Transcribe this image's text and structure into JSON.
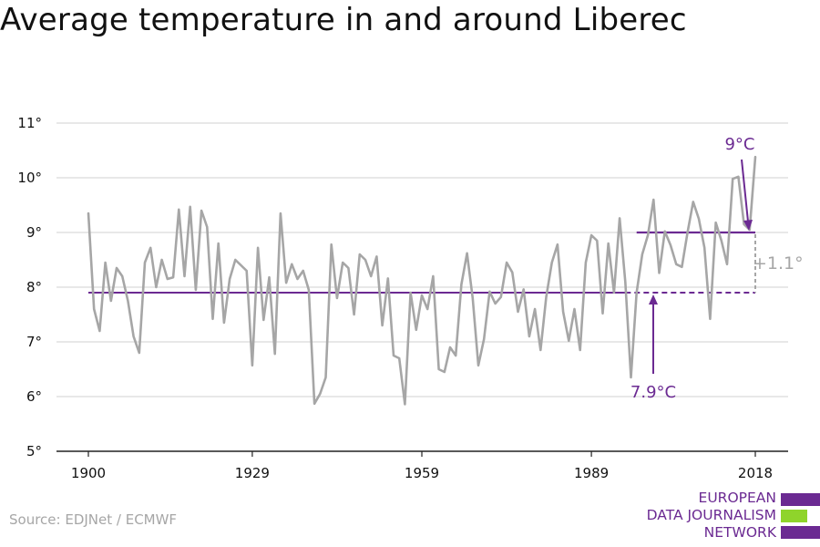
{
  "title": "Average temperature in and around Liberec",
  "source": "Source: EDJNet / ECMWF",
  "logo": {
    "lines": [
      "EUROPEAN",
      "DATA JOURNALISM",
      "NETWORK"
    ],
    "colors": [
      "#6b2a92",
      "#8fd42b",
      "#6b2a92"
    ]
  },
  "colors": {
    "series": "#a6a6a6",
    "accent": "#6b2a92",
    "grid": "#d9d9d9",
    "axis": "#222222",
    "text": "#111111",
    "delta": "#a6a6a6"
  },
  "chart_data": {
    "type": "line",
    "title": "Average temperature in and around Liberec",
    "xlabel": "",
    "ylabel": "",
    "xlim": [
      1900,
      2018
    ],
    "ylim": [
      5,
      11
    ],
    "grid": true,
    "x_ticks": [
      1900,
      1929,
      1959,
      1989,
      2018
    ],
    "x_tick_labels": [
      "1900",
      "1929",
      "1959",
      "1989",
      "2018"
    ],
    "y_ticks": [
      5,
      6,
      7,
      8,
      9,
      10,
      11
    ],
    "y_tick_labels": [
      "5°",
      "6°",
      "7°",
      "8°",
      "9°",
      "10°",
      "11°"
    ],
    "series": [
      {
        "x_start": 1900,
        "step": 1,
        "values": [
          9.35,
          7.6,
          7.2,
          8.45,
          7.75,
          8.35,
          8.2,
          7.75,
          7.1,
          6.8,
          8.45,
          8.72,
          8.0,
          8.5,
          8.15,
          8.18,
          9.42,
          8.2,
          9.47,
          7.95,
          9.4,
          9.1,
          7.42,
          8.8,
          7.35,
          8.15,
          8.5,
          8.4,
          8.3,
          6.57,
          8.72,
          7.4,
          8.18,
          6.78,
          9.35,
          8.08,
          8.42,
          8.15,
          8.3,
          7.95,
          5.87,
          6.05,
          6.35,
          8.78,
          7.8,
          8.45,
          8.35,
          7.5,
          8.6,
          8.5,
          8.2,
          8.56,
          7.3,
          8.16,
          6.75,
          6.7,
          5.86,
          7.9,
          7.22,
          7.85,
          7.6,
          8.2,
          6.5,
          6.45,
          6.9,
          6.75,
          8.05,
          8.62,
          7.8,
          6.57,
          7.05,
          7.92,
          7.7,
          7.82,
          8.45,
          8.27,
          7.55,
          7.96,
          7.1,
          7.6,
          6.85,
          7.82,
          8.45,
          8.78,
          7.55,
          7.02,
          7.6,
          6.85,
          8.45,
          8.95,
          8.85,
          7.52,
          8.8,
          7.9,
          9.26,
          8.1,
          6.35,
          7.9,
          8.6,
          8.95,
          9.6,
          8.26,
          9.02,
          8.77,
          8.42,
          8.37,
          9.0,
          9.56,
          9.25,
          8.72,
          7.42,
          9.18,
          8.85,
          8.42,
          9.98,
          10.02,
          9.15,
          9.05,
          10.38
        ]
      }
    ],
    "annotations": {
      "baseline": {
        "value": 7.9,
        "x_start": 1900,
        "x_end": 2018,
        "label": "7.9°C",
        "dashed_from": 1995
      },
      "recent": {
        "value": 9.0,
        "x_start": 1997,
        "x_end": 2018,
        "label": "9°C"
      },
      "difference": {
        "label": "+1.1°"
      }
    }
  }
}
